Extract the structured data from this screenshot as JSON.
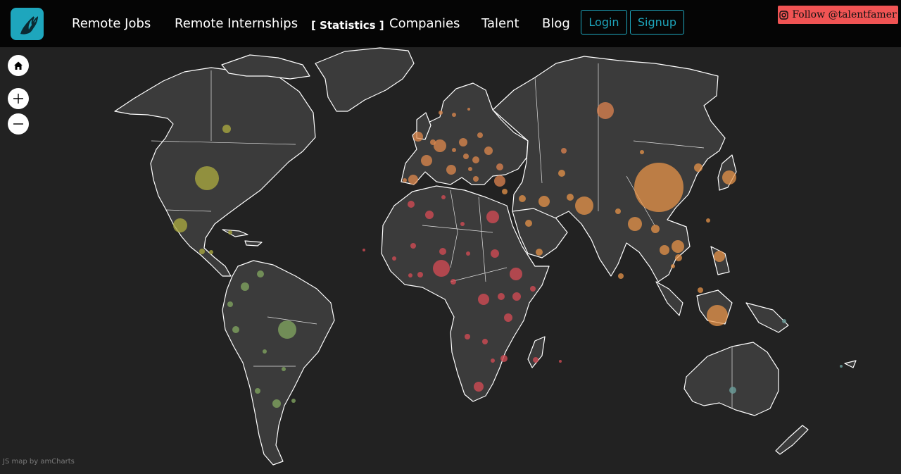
{
  "nav": {
    "items": [
      {
        "label": "Remote Jobs"
      },
      {
        "label": "Remote Internships"
      },
      {
        "label": "[ Statistics ]",
        "active": true
      },
      {
        "label": "Companies"
      },
      {
        "label": "Talent"
      },
      {
        "label": "Blog"
      }
    ],
    "login_label": "Login",
    "signup_label": "Signup",
    "follow_label": "Follow @talentfamer"
  },
  "map": {
    "credit": "JS map by amCharts",
    "controls": [
      "home-icon",
      "zoom-in-icon",
      "zoom-out-icon"
    ],
    "colors": {
      "background": "#222222",
      "land": "#3b3b3b",
      "borders": "#ffffff",
      "asia": "#e8944a",
      "europe": "#e0894e",
      "africa": "#d04b54",
      "north_america": "#a8a640",
      "south_america": "#7fa35f",
      "oceania": "#6a9a96",
      "accent": "#1ea6bd",
      "follow_bg": "#f05454"
    }
  }
}
